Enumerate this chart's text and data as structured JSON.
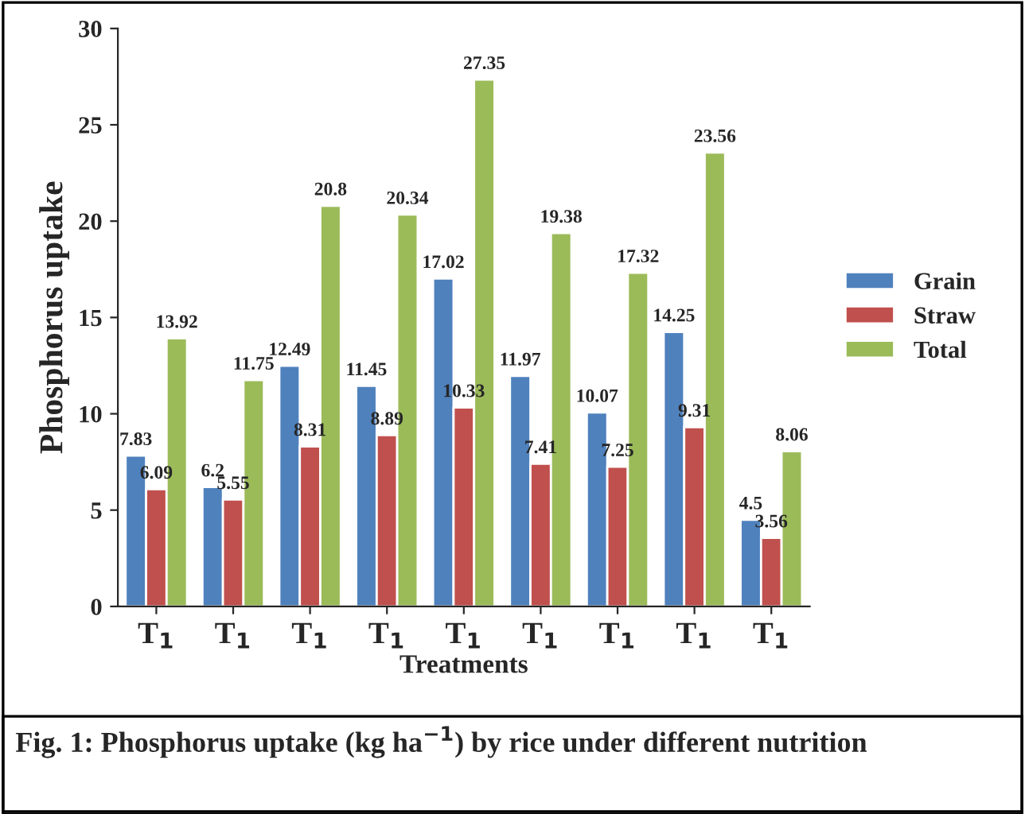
{
  "chart_data": {
    "type": "bar",
    "xlabel": "Treatments",
    "ylabel": "Phosphorus uptake",
    "categories": [
      "T$_{1}$",
      "T$_{1}$",
      "T$_{1}$",
      "T$_{1}$",
      "T$_{1}$",
      "T$_{1}$",
      "T$_{1}$",
      "T$_{1}$",
      "T$_{1}$"
    ],
    "series": [
      {
        "name": "Grain",
        "color": "#4f81bd",
        "values": [
          7.83,
          6.2,
          12.49,
          11.45,
          17.02,
          11.97,
          10.07,
          14.25,
          4.5
        ]
      },
      {
        "name": "Straw",
        "color": "#c0504d",
        "values": [
          6.09,
          5.55,
          8.31,
          8.89,
          10.33,
          7.41,
          7.25,
          9.31,
          3.56
        ]
      },
      {
        "name": "Total",
        "color": "#9bbb59",
        "values": [
          13.92,
          11.75,
          20.8,
          20.34,
          27.35,
          19.38,
          17.32,
          23.56,
          8.06
        ]
      }
    ],
    "ylim": [
      0,
      30
    ],
    "yticks": [
      0,
      5,
      10,
      15,
      20,
      25,
      30
    ],
    "grid": false,
    "legend": "right",
    "data_labels": true,
    "annotations": [
      "Fig. 1: Phosphorus uptake (kg ha$^{−1}$) by rice under different nutrition"
    ]
  }
}
